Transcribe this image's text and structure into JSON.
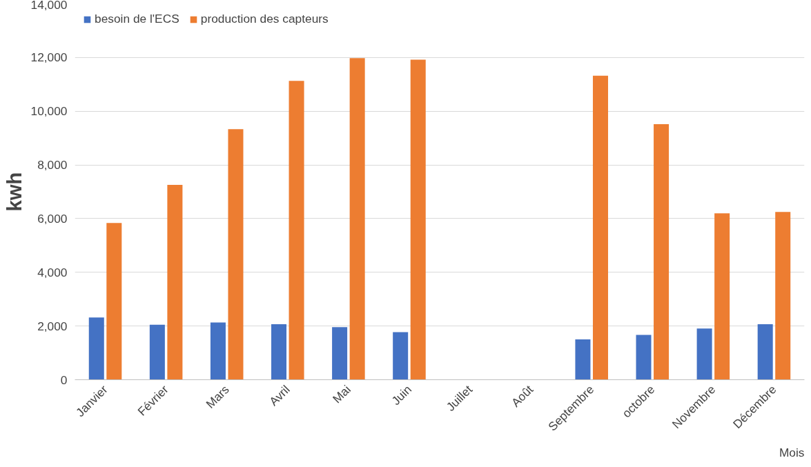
{
  "chart_data": {
    "type": "bar",
    "ylabel": "kwh",
    "xlabel": "Mois",
    "categories": [
      "Janvier",
      "Février",
      "Mars",
      "Avril",
      "Mai",
      "Juin",
      "Juillet",
      "Août",
      "Septembre",
      "octobre",
      "Novembre",
      "Décembre"
    ],
    "series": [
      {
        "name": "besoin de l'ECS",
        "color": "#4472c4",
        "values": [
          2320,
          2050,
          2130,
          2070,
          1960,
          1770,
          null,
          null,
          1500,
          1670,
          1910,
          2070
        ]
      },
      {
        "name": "production des capteurs",
        "color": "#ed7d31",
        "values": [
          5840,
          7260,
          9330,
          11130,
          11980,
          11920,
          null,
          null,
          11320,
          9520,
          6200,
          6250
        ]
      }
    ],
    "ylim": [
      0,
      14000
    ],
    "yticks": [
      0,
      {
        "value": 2000,
        "label": "2,000"
      },
      {
        "value": 4000,
        "label": "4,000"
      },
      {
        "value": 6000,
        "label": "6,000"
      },
      {
        "value": 8000,
        "label": "8,000"
      },
      {
        "value": 10000,
        "label": "10,000"
      },
      {
        "value": 12000,
        "label": "12,000"
      },
      {
        "value": 14000,
        "label": "14,000"
      }
    ],
    "grid": "y",
    "legend": "top left"
  }
}
